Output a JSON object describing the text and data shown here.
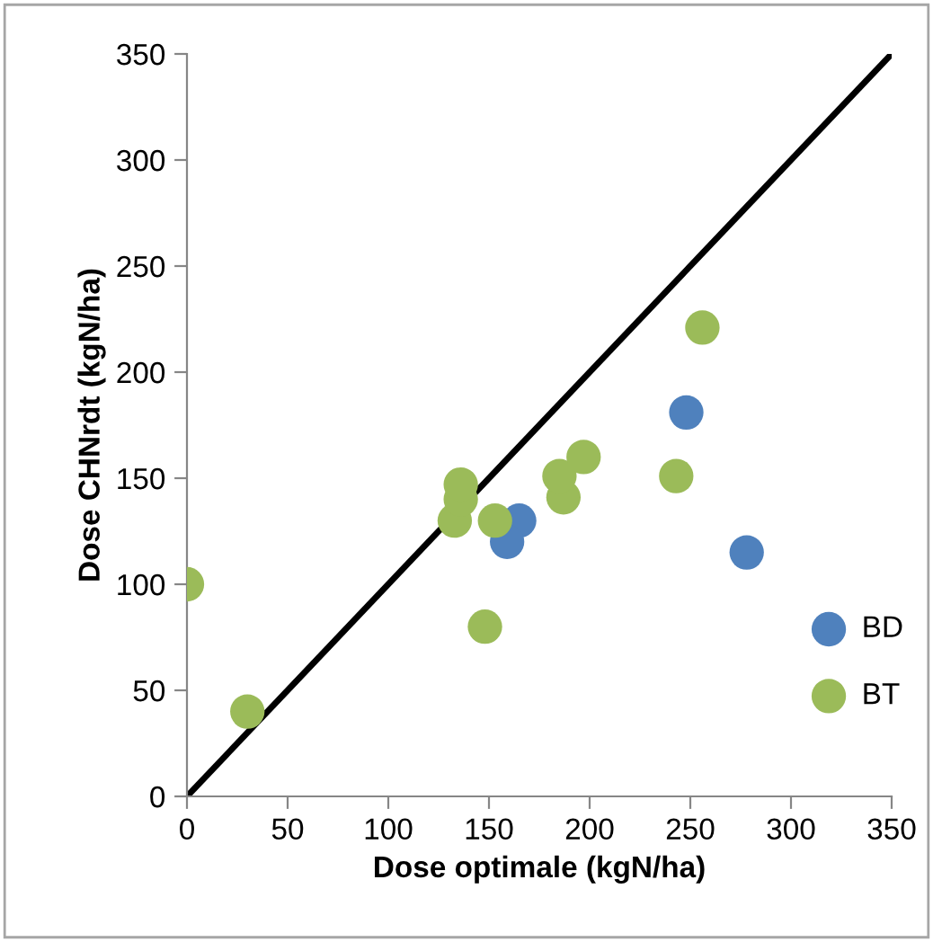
{
  "chart_data": {
    "type": "scatter",
    "xlabel": "Dose optimale (kgN/ha)",
    "ylabel": "Dose CHNrdt (kgN/ha)",
    "xlim": [
      0,
      350
    ],
    "ylim": [
      0,
      350
    ],
    "xticks": [
      0,
      50,
      100,
      150,
      200,
      250,
      300,
      350
    ],
    "yticks": [
      0,
      50,
      100,
      150,
      200,
      250,
      300,
      350
    ],
    "grid": false,
    "legend": "right",
    "marker": "circle",
    "series": [
      {
        "name": "BD",
        "color": "#4f81bd",
        "x": [
          165,
          159,
          248,
          278
        ],
        "values": [
          130,
          120,
          181,
          115
        ]
      },
      {
        "name": "BT",
        "color": "#9bbb59",
        "x": [
          0,
          30,
          133,
          136,
          136,
          153,
          148,
          187,
          185,
          197,
          243,
          256
        ],
        "values": [
          100,
          40,
          130,
          140,
          147,
          130,
          80,
          141,
          151,
          160,
          151,
          221
        ]
      },
      {
        "type": "line",
        "color": "#000000",
        "x": [
          0,
          350
        ],
        "values": [
          0,
          350
        ],
        "marker": "none",
        "line_style": "solid"
      }
    ]
  }
}
